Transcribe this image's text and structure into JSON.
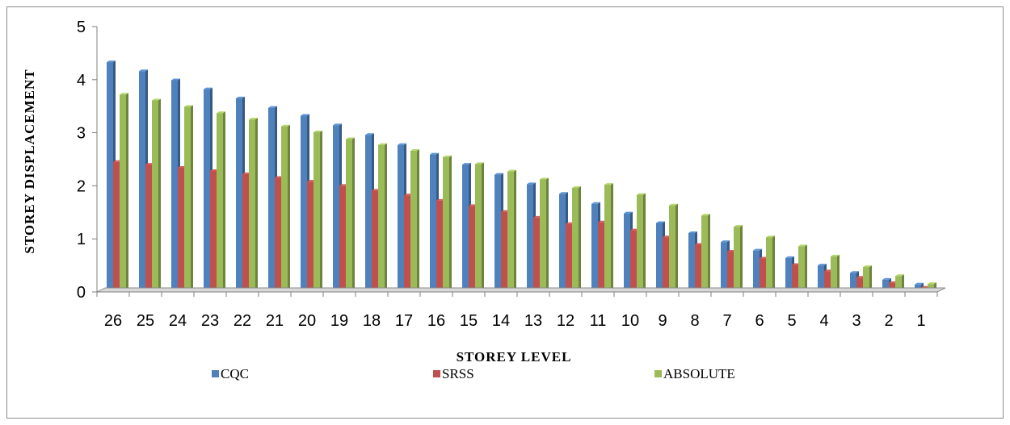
{
  "chart_data": {
    "type": "bar",
    "title": "",
    "xlabel": "STOREY LEVEL",
    "ylabel": "STOREY DISPLACEMENT",
    "ylim": [
      0,
      5
    ],
    "yticks": [
      "0",
      "1",
      "2",
      "3",
      "4",
      "5"
    ],
    "grid": false,
    "legend_position": "bottom",
    "categories": [
      "26",
      "25",
      "24",
      "23",
      "22",
      "21",
      "20",
      "19",
      "18",
      "17",
      "16",
      "15",
      "14",
      "13",
      "12",
      "11",
      "10",
      "9",
      "8",
      "7",
      "6",
      "5",
      "4",
      "3",
      "2",
      "1"
    ],
    "series": [
      {
        "name": "CQC",
        "color": "#4F81BD",
        "values": [
          4.33,
          4.16,
          3.99,
          3.82,
          3.65,
          3.47,
          3.32,
          3.14,
          2.96,
          2.77,
          2.59,
          2.4,
          2.21,
          2.03,
          1.85,
          1.66,
          1.48,
          1.3,
          1.11,
          0.94,
          0.78,
          0.64,
          0.5,
          0.36,
          0.23,
          0.14
        ]
      },
      {
        "name": "SRSS",
        "color": "#C0504D",
        "values": [
          2.45,
          2.4,
          2.34,
          2.28,
          2.22,
          2.15,
          2.08,
          2.0,
          1.91,
          1.82,
          1.72,
          1.62,
          1.51,
          1.4,
          1.28,
          1.31,
          1.16,
          1.03,
          0.89,
          0.76,
          0.63,
          0.51,
          0.39,
          0.27,
          0.17,
          0.08
        ]
      },
      {
        "name": "ABSOLUTE",
        "color": "#9BBB59",
        "values": [
          3.72,
          3.61,
          3.49,
          3.37,
          3.25,
          3.12,
          3.01,
          2.88,
          2.77,
          2.66,
          2.54,
          2.41,
          2.27,
          2.12,
          1.96,
          2.02,
          1.83,
          1.63,
          1.44,
          1.23,
          1.03,
          0.86,
          0.67,
          0.47,
          0.3,
          0.15
        ]
      }
    ]
  }
}
